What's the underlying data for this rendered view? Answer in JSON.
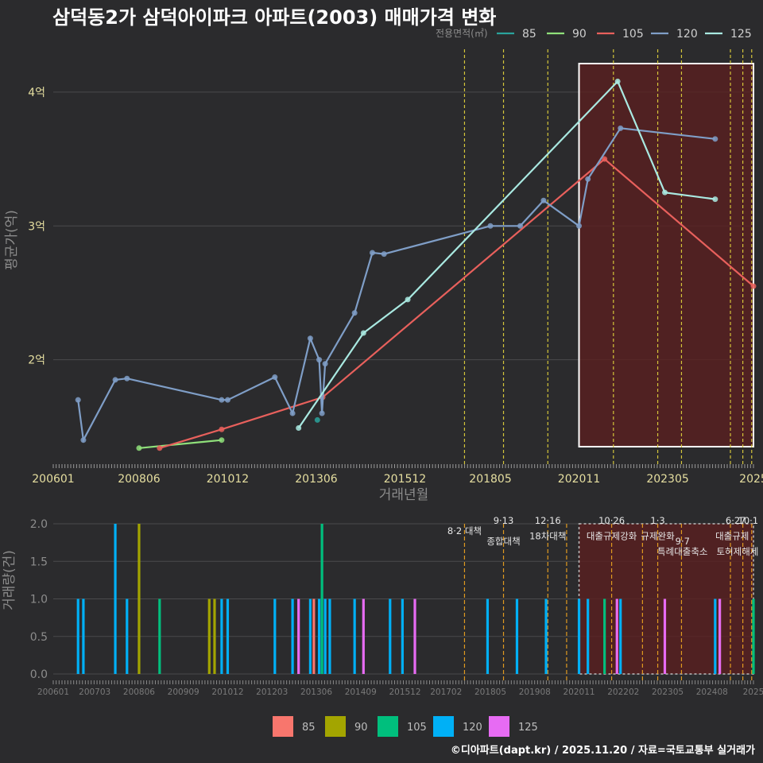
{
  "title": "삼덕동2가 삼덕아이파크 아파트(2003) 매매가격 변화",
  "footer": "©디아파트(dapt.kr) / 2025.11.20 / 자료=국토교통부 실거래가",
  "colors": {
    "bg": "#2b2b2d",
    "grid": "#4a4a4c",
    "tick_text": "#e6dfa0",
    "axis_title": "#8c8c8c",
    "highlight_fill": "#5a1f1f",
    "event_line": "#d4c53a",
    "event_line_bottom": "#e09a20"
  },
  "chart_data": [
    {
      "id": "price",
      "type": "line",
      "title": "삼덕동2가 삼덕아이파크 아파트(2003) 매매가격 변화",
      "xlabel": "거래년월",
      "ylabel": "평균가(억)",
      "legend_title": "전용면적(㎡)",
      "legend_position": "top-right",
      "xlim": [
        2006.0,
        2025.75
      ],
      "ylim": [
        1.22,
        4.32
      ],
      "xticks": [
        {
          "label": "200601",
          "v": 2006.0
        },
        {
          "label": "200806",
          "v": 2008.42
        },
        {
          "label": "201012",
          "v": 2010.92
        },
        {
          "label": "201306",
          "v": 2013.42
        },
        {
          "label": "201512",
          "v": 2015.92
        },
        {
          "label": "201805",
          "v": 2018.33
        },
        {
          "label": "202011",
          "v": 2020.83
        },
        {
          "label": "202305",
          "v": 2023.33
        },
        {
          "label": "2025",
          "v": 2025.75
        }
      ],
      "yticks": [
        {
          "label": "2억",
          "v": 2
        },
        {
          "label": "3억",
          "v": 3
        },
        {
          "label": "4억",
          "v": 4
        }
      ],
      "series": [
        {
          "name": "85",
          "color": "#2aa39c",
          "points": [
            [
              2013.45,
              1.55
            ]
          ]
        },
        {
          "name": "90",
          "color": "#8fe07a",
          "points": [
            [
              2008.42,
              1.34
            ],
            [
              2010.75,
              1.4
            ]
          ]
        },
        {
          "name": "105",
          "color": "#e8605c",
          "points": [
            [
              2009.0,
              1.34
            ],
            [
              2010.75,
              1.48
            ],
            [
              2013.6,
              1.72
            ],
            [
              2021.55,
              3.5
            ],
            [
              2025.75,
              2.55
            ]
          ]
        },
        {
          "name": "120",
          "color": "#7f9ec7",
          "points": [
            [
              2006.7,
              1.7
            ],
            [
              2006.85,
              1.4
            ],
            [
              2007.75,
              1.85
            ],
            [
              2008.08,
              1.86
            ],
            [
              2010.75,
              1.7
            ],
            [
              2010.92,
              1.7
            ],
            [
              2012.25,
              1.87
            ],
            [
              2012.75,
              1.6
            ],
            [
              2013.25,
              2.16
            ],
            [
              2013.5,
              2.0
            ],
            [
              2013.58,
              1.6
            ],
            [
              2013.67,
              1.97
            ],
            [
              2014.5,
              2.35
            ],
            [
              2015.0,
              2.8
            ],
            [
              2015.33,
              2.79
            ],
            [
              2018.33,
              3.0
            ],
            [
              2019.17,
              3.0
            ],
            [
              2019.83,
              3.19
            ],
            [
              2020.83,
              3.0
            ],
            [
              2021.08,
              3.35
            ],
            [
              2022.0,
              3.73
            ],
            [
              2024.67,
              3.65
            ]
          ]
        },
        {
          "name": "125",
          "color": "#a9e9e1",
          "points": [
            [
              2012.92,
              1.49
            ],
            [
              2014.75,
              2.2
            ],
            [
              2016.0,
              2.45
            ],
            [
              2021.92,
              4.08
            ],
            [
              2023.25,
              3.25
            ],
            [
              2024.67,
              3.2
            ]
          ]
        }
      ],
      "events": [
        2017.6,
        2018.7,
        2019.95,
        2021.8,
        2023.05,
        2023.72,
        2025.1,
        2025.45,
        2025.7
      ]
    },
    {
      "id": "volume",
      "type": "bar",
      "xlabel": "",
      "ylabel": "거래량(건)",
      "legend_position": "bottom",
      "xlim": [
        2006.0,
        2025.75
      ],
      "ylim": [
        0,
        2.0
      ],
      "xticks": [
        {
          "label": "200601",
          "v": 2006.0
        },
        {
          "label": "200703",
          "v": 2007.17
        },
        {
          "label": "200806",
          "v": 2008.42
        },
        {
          "label": "200909",
          "v": 2009.67
        },
        {
          "label": "201012",
          "v": 2010.92
        },
        {
          "label": "201203",
          "v": 2012.17
        },
        {
          "label": "201306",
          "v": 2013.42
        },
        {
          "label": "201409",
          "v": 2014.67
        },
        {
          "label": "201512",
          "v": 2015.92
        },
        {
          "label": "201702",
          "v": 2017.08
        },
        {
          "label": "201805",
          "v": 2018.33
        },
        {
          "label": "201908",
          "v": 2019.58
        },
        {
          "label": "202011",
          "v": 2020.83
        },
        {
          "label": "202202",
          "v": 2022.08
        },
        {
          "label": "202305",
          "v": 2023.33
        },
        {
          "label": "202408",
          "v": 2024.58
        },
        {
          "label": "2025",
          "v": 2025.75
        }
      ],
      "yticks": [
        {
          "label": "0.0",
          "v": 0
        },
        {
          "label": "0.5",
          "v": 0.5
        },
        {
          "label": "1.0",
          "v": 1.0
        },
        {
          "label": "1.5",
          "v": 1.5
        },
        {
          "label": "2.0",
          "v": 2.0
        }
      ],
      "legend": [
        {
          "name": "85",
          "color": "#f8766d"
        },
        {
          "name": "90",
          "color": "#a3a500"
        },
        {
          "name": "105",
          "color": "#00bf7d"
        },
        {
          "name": "120",
          "color": "#00b0f6"
        },
        {
          "name": "125",
          "color": "#e76bf3"
        }
      ],
      "bars": [
        {
          "x": 2006.7,
          "v": 1,
          "s": "120"
        },
        {
          "x": 2006.85,
          "v": 1,
          "s": "120"
        },
        {
          "x": 2007.75,
          "v": 2,
          "s": "120"
        },
        {
          "x": 2008.08,
          "v": 1,
          "s": "120"
        },
        {
          "x": 2008.42,
          "v": 2,
          "s": "90"
        },
        {
          "x": 2009.0,
          "v": 1,
          "s": "105"
        },
        {
          "x": 2010.4,
          "v": 1,
          "s": "90"
        },
        {
          "x": 2010.55,
          "v": 1,
          "s": "90"
        },
        {
          "x": 2010.75,
          "v": 1,
          "s": "120"
        },
        {
          "x": 2010.92,
          "v": 1,
          "s": "120"
        },
        {
          "x": 2012.25,
          "v": 1,
          "s": "120"
        },
        {
          "x": 2012.75,
          "v": 1,
          "s": "120"
        },
        {
          "x": 2012.92,
          "v": 1,
          "s": "125"
        },
        {
          "x": 2013.25,
          "v": 1,
          "s": "120"
        },
        {
          "x": 2013.35,
          "v": 1,
          "s": "85"
        },
        {
          "x": 2013.5,
          "v": 1,
          "s": "120"
        },
        {
          "x": 2013.58,
          "v": 2,
          "s": "105"
        },
        {
          "x": 2013.67,
          "v": 1,
          "s": "120"
        },
        {
          "x": 2013.8,
          "v": 1,
          "s": "120"
        },
        {
          "x": 2014.5,
          "v": 1,
          "s": "120"
        },
        {
          "x": 2014.75,
          "v": 1,
          "s": "125"
        },
        {
          "x": 2015.5,
          "v": 1,
          "s": "120"
        },
        {
          "x": 2015.85,
          "v": 1,
          "s": "120"
        },
        {
          "x": 2016.2,
          "v": 1,
          "s": "125"
        },
        {
          "x": 2018.25,
          "v": 1,
          "s": "120"
        },
        {
          "x": 2019.08,
          "v": 1,
          "s": "120"
        },
        {
          "x": 2019.9,
          "v": 1,
          "s": "120"
        },
        {
          "x": 2020.83,
          "v": 1,
          "s": "120"
        },
        {
          "x": 2021.08,
          "v": 1,
          "s": "120"
        },
        {
          "x": 2021.55,
          "v": 1,
          "s": "105"
        },
        {
          "x": 2021.9,
          "v": 1,
          "s": "125"
        },
        {
          "x": 2022.0,
          "v": 1,
          "s": "120"
        },
        {
          "x": 2023.25,
          "v": 1,
          "s": "125"
        },
        {
          "x": 2024.67,
          "v": 1,
          "s": "120"
        },
        {
          "x": 2024.8,
          "v": 1,
          "s": "125"
        },
        {
          "x": 2025.75,
          "v": 1,
          "s": "105"
        }
      ],
      "annotations": [
        {
          "x": 2017.6,
          "row": 0,
          "text": "8·2 대책"
        },
        {
          "x": 2018.7,
          "row": -1,
          "text": "9·13"
        },
        {
          "x": 2018.7,
          "row": 1,
          "text": "종합대책"
        },
        {
          "x": 2019.95,
          "row": -1,
          "text": "12·16"
        },
        {
          "x": 2019.95,
          "row": 0.5,
          "text": "18차대책"
        },
        {
          "x": 2021.75,
          "row": -1,
          "text": "10·26"
        },
        {
          "x": 2021.75,
          "row": 0.5,
          "text": "대출규제강화"
        },
        {
          "x": 2023.05,
          "row": -1,
          "text": "1·3"
        },
        {
          "x": 2023.05,
          "row": 0.5,
          "text": "규제완화"
        },
        {
          "x": 2023.75,
          "row": 1,
          "text": "9·7"
        },
        {
          "x": 2023.75,
          "row": 2,
          "text": "특례대출축소"
        },
        {
          "x": 2025.25,
          "row": -1,
          "text": "6·27"
        },
        {
          "x": 2025.6,
          "row": -1,
          "text": "10·1"
        },
        {
          "x": 2025.15,
          "row": 0.5,
          "text": "대출규제"
        },
        {
          "x": 2025.3,
          "row": 2,
          "text": "토허제해제"
        }
      ],
      "events": [
        2017.6,
        2018.7,
        2019.95,
        2020.48,
        2021.75,
        2022.62,
        2023.05,
        2023.72,
        2025.1,
        2025.45,
        2025.7
      ]
    }
  ]
}
